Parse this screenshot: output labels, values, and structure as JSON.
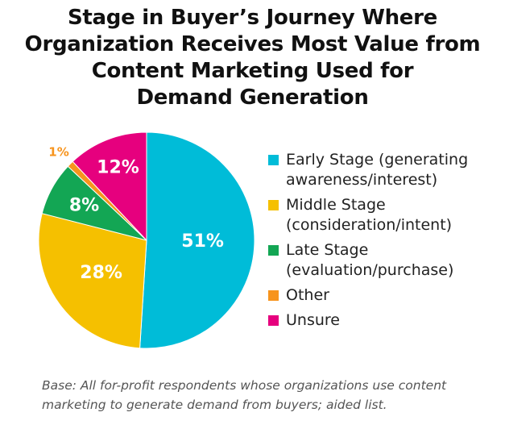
{
  "chart_data": {
    "type": "pie",
    "title": "Stage in Buyer’s Journey Where\nOrganization Receives Most Value from\nContent Marketing Used for\nDemand Generation",
    "categories": [
      "Early Stage (generating\nawareness/interest)",
      "Middle Stage\n(consideration/intent)",
      "Late Stage\n(evaluation/purchase)",
      "Other",
      "Unsure"
    ],
    "values": [
      51,
      28,
      8,
      1,
      12
    ],
    "value_labels": [
      "51%",
      "28%",
      "8%",
      "1%",
      "12%"
    ],
    "colors": [
      "#00bcd8",
      "#f5c000",
      "#13a654",
      "#f7941d",
      "#e6007e"
    ],
    "note": "Base: All for-profit respondents whose organizations use content\nmarketing to generate demand from buyers; aided list."
  }
}
